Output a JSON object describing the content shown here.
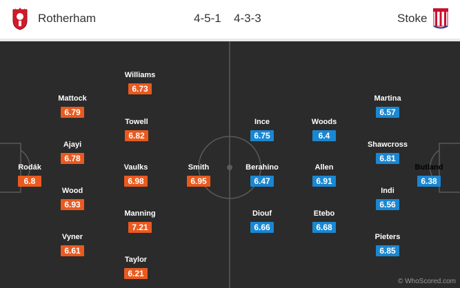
{
  "header": {
    "home_team": "Rotherham",
    "home_formation": "4-5-1",
    "away_formation": "4-3-3",
    "away_team": "Stoke"
  },
  "colors": {
    "home_rating": "#ea5a1f",
    "away_rating": "#1a87d2",
    "pitch": "#2b2b2b",
    "lines": "#5a5a5a"
  },
  "home_players": [
    {
      "name": "Rodák",
      "rating": "6.8"
    },
    {
      "name": "Mattock",
      "rating": "6.79"
    },
    {
      "name": "Ajayi",
      "rating": "6.78"
    },
    {
      "name": "Wood",
      "rating": "6.93"
    },
    {
      "name": "Vyner",
      "rating": "6.61"
    },
    {
      "name": "Williams",
      "rating": "6.73"
    },
    {
      "name": "Towell",
      "rating": "6.82"
    },
    {
      "name": "Vaulks",
      "rating": "6.98"
    },
    {
      "name": "Manning",
      "rating": "7.21"
    },
    {
      "name": "Taylor",
      "rating": "6.21"
    },
    {
      "name": "Smith",
      "rating": "6.95"
    }
  ],
  "away_players": [
    {
      "name": "Ince",
      "rating": "6.75"
    },
    {
      "name": "Berahino",
      "rating": "6.47"
    },
    {
      "name": "Diouf",
      "rating": "6.66"
    },
    {
      "name": "Woods",
      "rating": "6.4"
    },
    {
      "name": "Allen",
      "rating": "6.91"
    },
    {
      "name": "Etebo",
      "rating": "6.68"
    },
    {
      "name": "Martina",
      "rating": "6.57"
    },
    {
      "name": "Shawcross",
      "rating": "6.81"
    },
    {
      "name": "Indi",
      "rating": "6.56"
    },
    {
      "name": "Pieters",
      "rating": "6.85"
    },
    {
      "name": "Butland",
      "rating": "6.38"
    }
  ],
  "credit": "© WhoScored.com"
}
